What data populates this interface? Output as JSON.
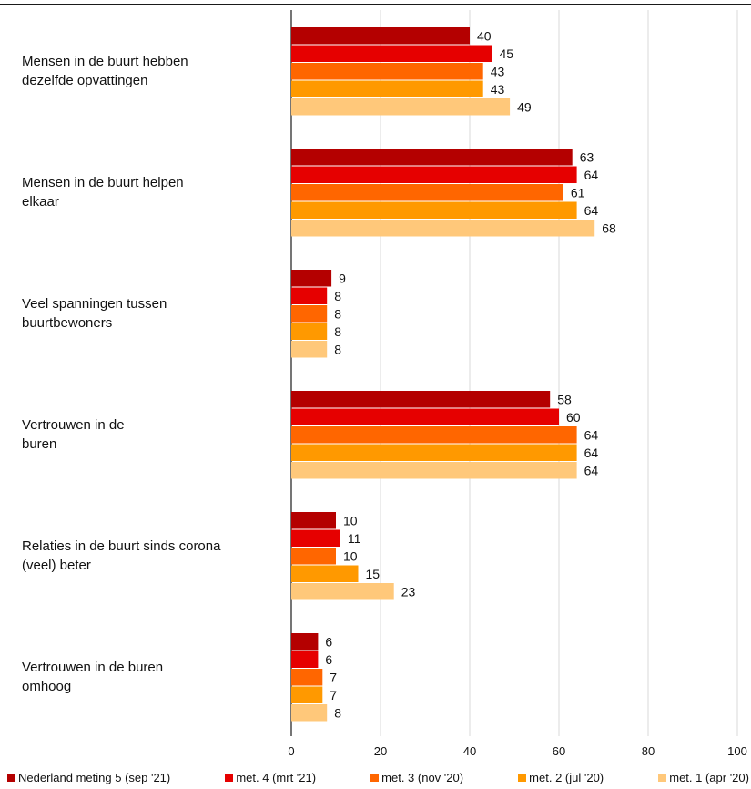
{
  "chart_data": {
    "type": "bar",
    "orientation": "horizontal",
    "categories": [
      "Mensen in de buurt hebben dezelfde opvattingen",
      "Mensen in de buurt helpen elkaar",
      "Veel spanningen tussen buurtbewoners",
      "Vertrouwen in de buren",
      "Relaties in de buurt sinds corona (veel) beter",
      "Vertrouwen in de buren omhoog"
    ],
    "category_lines": [
      [
        "Mensen in de buurt hebben",
        "dezelfde opvattingen"
      ],
      [
        "Mensen in de buurt helpen",
        "elkaar"
      ],
      [
        "Veel spanningen tussen",
        "buurtbewoners"
      ],
      [
        "Vertrouwen in de",
        "buren"
      ],
      [
        "Relaties in de buurt sinds corona",
        "(veel) beter"
      ],
      [
        "Vertrouwen in de buren",
        "omhoog"
      ]
    ],
    "series": [
      {
        "name": "Nederland meting 5 (sep '21)",
        "color": "#b40000",
        "values": [
          40,
          63,
          9,
          58,
          10,
          6
        ]
      },
      {
        "name": "met. 4 (mrt '21)",
        "color": "#e60000",
        "values": [
          45,
          64,
          8,
          60,
          11,
          6
        ]
      },
      {
        "name": "met. 3 (nov '20)",
        "color": "#ff6600",
        "values": [
          43,
          61,
          8,
          64,
          10,
          7
        ]
      },
      {
        "name": "met. 2 (jul '20)",
        "color": "#ff9900",
        "values": [
          43,
          64,
          8,
          64,
          15,
          7
        ]
      },
      {
        "name": "met. 1 (apr '20)",
        "color": "#ffc87a",
        "values": [
          49,
          68,
          8,
          64,
          23,
          8
        ]
      }
    ],
    "xlim": [
      0,
      100
    ],
    "xticks": [
      0,
      20,
      40,
      60,
      80,
      100
    ],
    "grid": true,
    "legend_position": "bottom"
  }
}
